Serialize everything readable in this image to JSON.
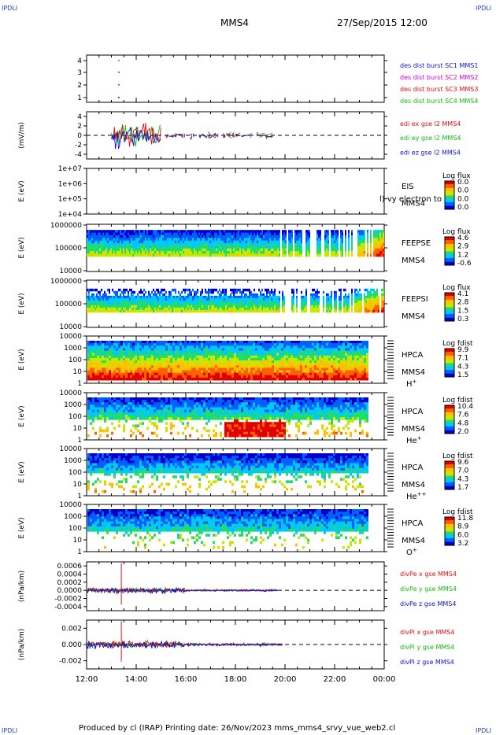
{
  "header": {
    "corner_label": "IPDLI",
    "spacecraft": "MMS4",
    "datetime": "27/Sep/2015 12:00"
  },
  "footer": {
    "text": "Produced by cl (IRAP)   Printing date: 26/Nov/2023   mms_mms4_srvy_vue_web2.cl"
  },
  "colors": {
    "red": "#dd1111",
    "green": "#11bb11",
    "blue": "#1111cc",
    "magenta": "#dd00dd",
    "spectrum": [
      "#0000c8",
      "#0060ff",
      "#00c8ff",
      "#22dd66",
      "#c8e600",
      "#ffc000",
      "#ff6000",
      "#e00000"
    ]
  },
  "chart_data": {
    "type": "multi-panel time series and spectrograms",
    "time_axis": {
      "ticks": [
        "12:00",
        "14:00",
        "16:00",
        "18:00",
        "20:00",
        "22:00",
        "00:00"
      ],
      "range": [
        "12:00",
        "00:00"
      ]
    },
    "panels": [
      {
        "id": "burst",
        "type": "scatter",
        "ylabel": "",
        "ylim": [
          0.5,
          4.5
        ],
        "yticks": [
          "1",
          "2",
          "3",
          "4"
        ],
        "series": [
          {
            "name": "des dist burst SC1 MMS1",
            "color": "#1111cc",
            "level": 1,
            "time_hours": 13.3
          },
          {
            "name": "des dist burst SC2 MMS2",
            "color": "#dd00dd",
            "level": 2,
            "time_hours": 13.3
          },
          {
            "name": "des dist burst SC3 MMS3",
            "color": "#dd1111",
            "level": 3,
            "time_hours": 13.3
          },
          {
            "name": "des dist burst SC4 MMS4",
            "color": "#11bb11",
            "level": 4,
            "time_hours": 13.3
          }
        ]
      },
      {
        "id": "edi",
        "type": "line",
        "ylabel": "(mV/m)",
        "ylim": [
          -5,
          5
        ],
        "yticks": [
          "4",
          "2",
          "0",
          "-2",
          "-4"
        ],
        "reference_line": 0,
        "series": [
          {
            "name": "edi ex gse l2 MMS4",
            "color": "#dd1111"
          },
          {
            "name": "edi ey gse l2 MMS4",
            "color": "#11bb11"
          },
          {
            "name": "edi ez gse l2 MMS4",
            "color": "#1111cc"
          }
        ],
        "data_span_hours": [
          13.0,
          19.5
        ]
      },
      {
        "id": "eis",
        "type": "heatmap",
        "ylabel": "E (eV)",
        "yticks": [
          "1e+07",
          "1e+06",
          "1e+05",
          "1e+04"
        ],
        "instrument": "EIS",
        "spacecraft": "MMS4",
        "overlay_text": "l) vy electron to",
        "colorbar": {
          "title": "Log flux",
          "ticks": [
            "0.0",
            "0.0",
            "0.0",
            "0.0"
          ]
        },
        "has_data": false
      },
      {
        "id": "feepse",
        "type": "heatmap",
        "ylabel": "E (eV)",
        "yticks": [
          "1000000",
          "100000",
          "10000"
        ],
        "instrument": "FEEPSE",
        "spacecraft": "MMS4",
        "colorbar": {
          "title": "Log flux",
          "ticks": [
            "4.6",
            "2.9",
            "1.2",
            "-0.6"
          ]
        },
        "data_span_hours": [
          12.0,
          24.0
        ]
      },
      {
        "id": "feepsi",
        "type": "heatmap",
        "ylabel": "E (eV)",
        "yticks": [
          "1000000",
          "100000",
          "10000"
        ],
        "instrument": "FEEPSI",
        "spacecraft": "MMS4",
        "colorbar": {
          "title": "Log flux",
          "ticks": [
            "4.1",
            "2.8",
            "1.5",
            "0.3"
          ]
        },
        "data_span_hours": [
          12.0,
          24.0
        ]
      },
      {
        "id": "hpca_h",
        "type": "heatmap",
        "ylabel": "E (eV)",
        "yticks": [
          "10000",
          "1000",
          "100",
          "10",
          "1"
        ],
        "instrument": "HPCA",
        "spacecraft": "MMS4",
        "species": "H",
        "species_charge": "+",
        "colorbar": {
          "title": "Log fdist",
          "ticks": [
            "9.9",
            "7.1",
            "4.3",
            "1.5"
          ]
        },
        "data_span_hours": [
          12.0,
          23.3
        ]
      },
      {
        "id": "hpca_he",
        "type": "heatmap",
        "ylabel": "E (eV)",
        "yticks": [
          "10000",
          "1000",
          "100",
          "10",
          "1"
        ],
        "instrument": "HPCA",
        "spacecraft": "MMS4",
        "species": "He",
        "species_charge": "+",
        "colorbar": {
          "title": "Log fdist",
          "ticks": [
            "10.4",
            "7.6",
            "4.8",
            "2.0"
          ]
        },
        "data_span_hours": [
          12.0,
          23.3
        ]
      },
      {
        "id": "hpca_hepp",
        "type": "heatmap",
        "ylabel": "E (eV)",
        "yticks": [
          "10000",
          "1000",
          "100",
          "10",
          "1"
        ],
        "instrument": "HPCA",
        "spacecraft": "MMS4",
        "species": "He",
        "species_charge": "++",
        "colorbar": {
          "title": "Log fdist",
          "ticks": [
            "9.6",
            "7.0",
            "4.3",
            "1.7"
          ]
        },
        "data_span_hours": [
          12.0,
          23.3
        ]
      },
      {
        "id": "hpca_o",
        "type": "heatmap",
        "ylabel": "E (eV)",
        "yticks": [
          "10000",
          "1000",
          "100",
          "10",
          "1"
        ],
        "instrument": "HPCA",
        "spacecraft": "MMS4",
        "species": "O",
        "species_charge": "+",
        "colorbar": {
          "title": "Log fdist",
          "ticks": [
            "11.8",
            "8.9",
            "6.0",
            "3.2"
          ]
        },
        "data_span_hours": [
          12.0,
          23.3
        ]
      },
      {
        "id": "divpe",
        "type": "line",
        "ylabel": "(nPa/km)",
        "ylim": [
          -0.0005,
          0.0007
        ],
        "yticks": [
          "0.0006",
          "0.0004",
          "0.0002",
          "0.0000",
          "-0.0002",
          "-0.0004"
        ],
        "reference_line": 0,
        "series": [
          {
            "name": "divPe x gse MMS4",
            "color": "#dd1111"
          },
          {
            "name": "divPe y gse MMS4",
            "color": "#11bb11"
          },
          {
            "name": "divPe z gse MMS4",
            "color": "#1111cc"
          }
        ],
        "data_span_hours": [
          12.0,
          19.7
        ]
      },
      {
        "id": "divpi",
        "type": "line",
        "ylabel": "(nPa/km)",
        "ylim": [
          -0.003,
          0.003
        ],
        "yticks": [
          "0.002",
          "0.000",
          "-0.002"
        ],
        "reference_line": 0,
        "series": [
          {
            "name": "divPi x gse MMS4",
            "color": "#dd1111"
          },
          {
            "name": "divPi y gse MMS4",
            "color": "#11bb11"
          },
          {
            "name": "divPi z gse MMS4",
            "color": "#1111cc"
          }
        ],
        "data_span_hours": [
          12.0,
          19.9
        ]
      }
    ]
  }
}
